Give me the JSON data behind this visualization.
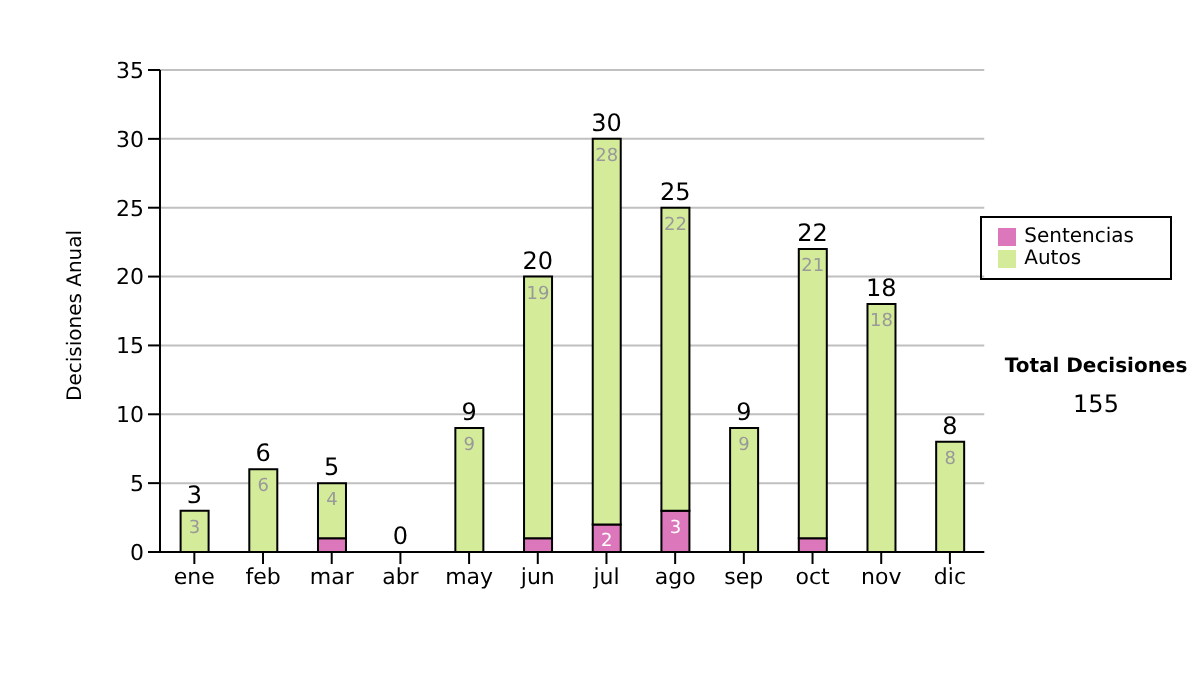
{
  "chart_data": {
    "type": "bar",
    "ylabel": "Decisiones Anual",
    "categories": [
      "ene",
      "feb",
      "mar",
      "abr",
      "may",
      "jun",
      "jul",
      "ago",
      "sep",
      "oct",
      "nov",
      "dic"
    ],
    "series": [
      {
        "name": "Sentencias",
        "color": "#dd77bb",
        "values": [
          0,
          0,
          1,
          0,
          0,
          1,
          2,
          3,
          0,
          1,
          0,
          0
        ],
        "value_labels": [
          null,
          null,
          null,
          null,
          null,
          null,
          "2",
          "3",
          null,
          null,
          null,
          null
        ]
      },
      {
        "name": "Autos",
        "color": "#d4ec9a",
        "values": [
          3,
          6,
          4,
          0,
          9,
          19,
          28,
          22,
          9,
          21,
          18,
          8
        ],
        "value_labels": [
          "3",
          "6",
          "4",
          null,
          "9",
          "19",
          "28",
          "22",
          "9",
          "21",
          "18",
          "8"
        ]
      }
    ],
    "stacked": true,
    "totals": [
      "3",
      "6",
      "5",
      "0",
      "9",
      "20",
      "30",
      "25",
      "9",
      "22",
      "18",
      "8"
    ],
    "ylim": [
      0,
      35
    ],
    "yticks": [
      0,
      5,
      10,
      15,
      20,
      25,
      30,
      35
    ],
    "grid": "y",
    "legend": "right",
    "annotations": [
      "Total Decisiones",
      "155"
    ]
  }
}
